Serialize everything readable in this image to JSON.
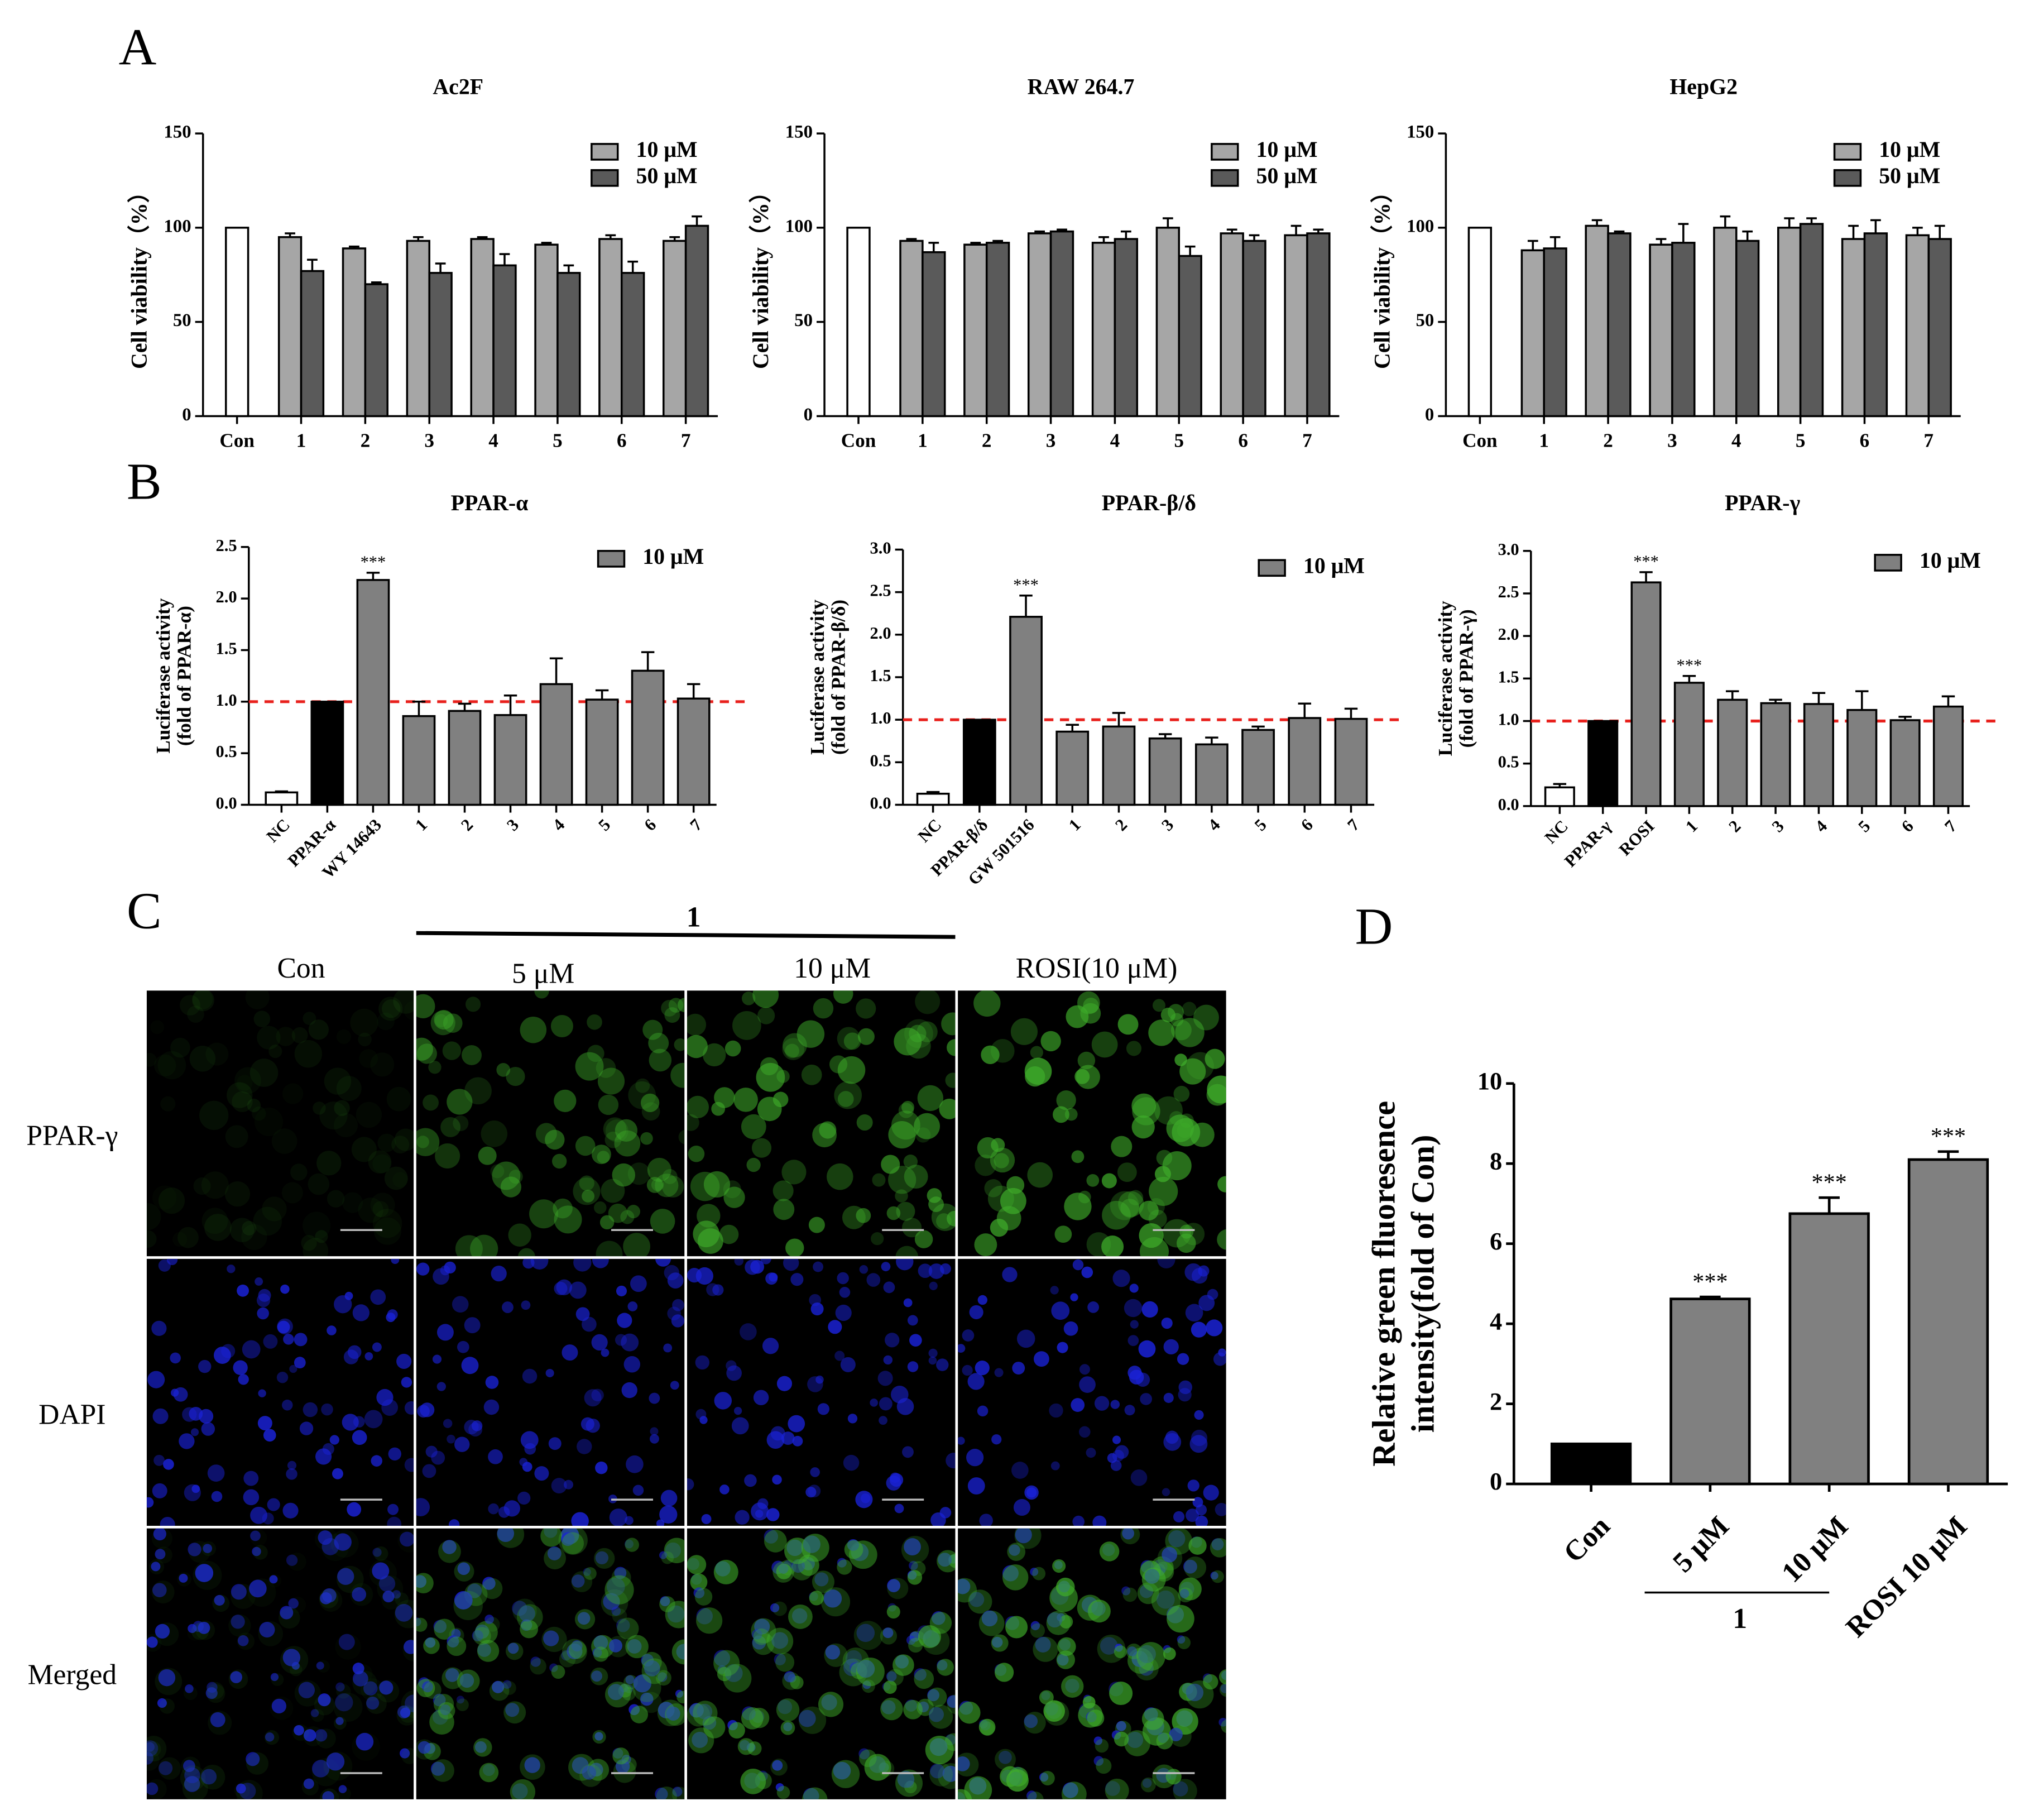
{
  "panel_labels": [
    "A",
    "B",
    "C",
    "D"
  ],
  "microscopy": {
    "group_label": "1",
    "columns": [
      "Con",
      "5 μM",
      "10 μM",
      "ROSI(10 μM)"
    ],
    "rows": [
      "PPAR-γ",
      "DAPI",
      "Merged"
    ]
  },
  "chart_data": [
    {
      "type": "bar",
      "title": "Ac2F",
      "ylabel": "Cell viability（%）",
      "categories": [
        "Con",
        "1",
        "2",
        "3",
        "4",
        "5",
        "6",
        "7"
      ],
      "ylim": [
        0,
        150
      ],
      "yticks": [
        0,
        50,
        100,
        150
      ],
      "series": [
        {
          "name": "10 μM",
          "color": "#a6a6a6",
          "point_colors": [
            "#ffffff",
            null,
            null,
            null,
            null,
            null,
            null,
            null
          ],
          "values": [
            100,
            95,
            89,
            93,
            94,
            91,
            94,
            93
          ],
          "errors": [
            null,
            2,
            1,
            2,
            1,
            1,
            2,
            2
          ]
        },
        {
          "name": "50 μM",
          "color": "#5a5a5a",
          "values": [
            null,
            77,
            70,
            76,
            80,
            76,
            76,
            101
          ],
          "errors": [
            null,
            6,
            1,
            5,
            6,
            4,
            6,
            5
          ]
        }
      ]
    },
    {
      "type": "bar",
      "title": "RAW 264.7",
      "ylabel": "Cell viability（%）",
      "categories": [
        "Con",
        "1",
        "2",
        "3",
        "4",
        "5",
        "6",
        "7"
      ],
      "ylim": [
        0,
        150
      ],
      "yticks": [
        0,
        50,
        100,
        150
      ],
      "series": [
        {
          "name": "10 μM",
          "color": "#a6a6a6",
          "point_colors": [
            "#ffffff",
            null,
            null,
            null,
            null,
            null,
            null,
            null
          ],
          "values": [
            100,
            93,
            91,
            97,
            92,
            100,
            97,
            96
          ],
          "errors": [
            null,
            1,
            1,
            1,
            3,
            5,
            2,
            5
          ]
        },
        {
          "name": "50 μM",
          "color": "#5a5a5a",
          "values": [
            null,
            87,
            92,
            98,
            94,
            85,
            93,
            97
          ],
          "errors": [
            null,
            5,
            1,
            1,
            4,
            5,
            3,
            2
          ]
        }
      ]
    },
    {
      "type": "bar",
      "title": "HepG2",
      "ylabel": "Cell viability（%）",
      "categories": [
        "Con",
        "1",
        "2",
        "3",
        "4",
        "5",
        "6",
        "7"
      ],
      "ylim": [
        0,
        150
      ],
      "yticks": [
        0,
        50,
        100,
        150
      ],
      "series": [
        {
          "name": "10 μM",
          "color": "#a6a6a6",
          "point_colors": [
            "#ffffff",
            null,
            null,
            null,
            null,
            null,
            null,
            null
          ],
          "values": [
            100,
            88,
            101,
            91,
            100,
            100,
            94,
            96
          ],
          "errors": [
            null,
            5,
            3,
            3,
            6,
            5,
            7,
            4
          ]
        },
        {
          "name": "50 μM",
          "color": "#5a5a5a",
          "values": [
            null,
            89,
            97,
            92,
            93,
            102,
            97,
            94
          ],
          "errors": [
            null,
            6,
            1,
            10,
            5,
            3,
            7,
            7
          ]
        }
      ]
    },
    {
      "type": "bar",
      "title": "PPAR-α",
      "ylabel": [
        "Luciferase activity",
        "(fold of PPAR-α)"
      ],
      "categories": [
        "NC",
        "PPAR-α",
        "WY 14643",
        "1",
        "2",
        "3",
        "4",
        "5",
        "6",
        "7"
      ],
      "ylim": [
        0,
        2.5
      ],
      "yticks": [
        {
          "value": 0,
          "label": "0.0"
        },
        0.5,
        {
          "value": 1,
          "label": "1.0"
        },
        1.5,
        {
          "value": 2,
          "label": "2.0"
        },
        2.5
      ],
      "reference_line": 1,
      "reference_color": "#e8201c",
      "series": [
        {
          "name": "10 μM",
          "color": "#808080",
          "point_colors": [
            "#ffffff",
            "#000000",
            null,
            null,
            null,
            null,
            null,
            null,
            null,
            null
          ],
          "values": [
            0.12,
            1.0,
            2.18,
            0.86,
            0.91,
            0.87,
            1.17,
            1.02,
            1.3,
            1.03
          ],
          "errors": [
            0.01,
            null,
            0.07,
            0.14,
            0.07,
            0.19,
            0.25,
            0.09,
            0.18,
            0.14
          ],
          "annotations": [
            null,
            null,
            "***",
            null,
            null,
            null,
            null,
            null,
            null,
            null
          ]
        }
      ]
    },
    {
      "type": "bar",
      "title": "PPAR-β/δ",
      "ylabel": [
        "Luciferase activity",
        "(fold of PPAR-β/δ)"
      ],
      "categories": [
        "NC",
        "PPAR-β/δ",
        "GW 501516",
        "1",
        "2",
        "3",
        "4",
        "5",
        "6",
        "7"
      ],
      "ylim": [
        0,
        3
      ],
      "yticks": [
        {
          "value": 0,
          "label": "0.0"
        },
        0.5,
        {
          "value": 1,
          "label": "1.0"
        },
        1.5,
        {
          "value": 2,
          "label": "2.0"
        },
        2.5,
        {
          "value": 3,
          "label": "3.0"
        }
      ],
      "reference_line": 1,
      "reference_color": "#e8201c",
      "series": [
        {
          "name": "10 μM",
          "color": "#808080",
          "point_colors": [
            "#ffffff",
            "#000000",
            null,
            null,
            null,
            null,
            null,
            null,
            null,
            null
          ],
          "values": [
            0.13,
            1.0,
            2.21,
            0.86,
            0.92,
            0.78,
            0.71,
            0.88,
            1.02,
            1.01
          ],
          "errors": [
            0.02,
            null,
            0.25,
            0.08,
            0.16,
            0.05,
            0.08,
            0.04,
            0.17,
            0.12
          ],
          "annotations": [
            null,
            null,
            "***",
            null,
            null,
            null,
            null,
            null,
            null,
            null
          ]
        }
      ]
    },
    {
      "type": "bar",
      "title": "PPAR-γ",
      "ylabel": [
        "Luciferase activity",
        "(fold of PPAR-γ)"
      ],
      "categories": [
        "NC",
        "PPAR-γ",
        "ROSI",
        "1",
        "2",
        "3",
        "4",
        "5",
        "6",
        "7"
      ],
      "ylim": [
        0,
        3
      ],
      "yticks": [
        {
          "value": 0,
          "label": "0.0"
        },
        0.5,
        {
          "value": 1,
          "label": "1.0"
        },
        1.5,
        {
          "value": 2,
          "label": "2.0"
        },
        2.5,
        {
          "value": 3,
          "label": "3.0"
        }
      ],
      "reference_line": 1,
      "reference_color": "#e8201c",
      "series": [
        {
          "name": "10 μM",
          "color": "#808080",
          "point_colors": [
            "#ffffff",
            "#000000",
            null,
            null,
            null,
            null,
            null,
            null,
            null,
            null
          ],
          "values": [
            0.22,
            1.0,
            2.63,
            1.45,
            1.25,
            1.21,
            1.2,
            1.13,
            1.01,
            1.17
          ],
          "errors": [
            0.04,
            null,
            0.12,
            0.08,
            0.1,
            0.04,
            0.13,
            0.22,
            0.04,
            0.12
          ],
          "annotations": [
            null,
            null,
            "***",
            "***",
            null,
            null,
            null,
            null,
            null,
            null
          ]
        }
      ]
    },
    {
      "type": "bar",
      "ylabel": [
        "Relative green fluoresence",
        "intensity(fold of Con)"
      ],
      "categories": [
        "Con",
        "5 μM",
        "10 μM",
        "ROSI 10 μM"
      ],
      "group_label": "1",
      "ylim": [
        0,
        10
      ],
      "yticks": [
        0,
        2,
        4,
        6,
        8,
        10
      ],
      "series": [
        {
          "color": "#808080",
          "point_colors": [
            "#000000",
            null,
            null,
            null
          ],
          "values": [
            1.0,
            4.62,
            6.75,
            8.1
          ],
          "errors": [
            null,
            0.05,
            0.4,
            0.2
          ],
          "annotations": [
            null,
            "***",
            "***",
            "***"
          ]
        }
      ]
    }
  ]
}
